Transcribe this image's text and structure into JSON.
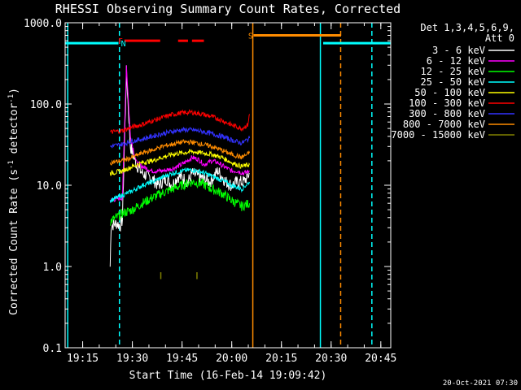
{
  "chart_data": {
    "type": "line",
    "title": "RHESSI Observing Summary Count Rates, Corrected",
    "xlabel": "Start Time (16-Feb-14 19:09:42)",
    "ylabel_main": "Corrected Count Rate (s",
    "ylabel_sup": "-1",
    "ylabel_tail": " detector",
    "ylabel_close": ")",
    "y_log": true,
    "ylim": [
      0.1,
      1000
    ],
    "xlim": [
      19.1617,
      20.8
    ],
    "x_ticks": [
      "19:15",
      "19:30",
      "19:45",
      "20:00",
      "20:15",
      "20:30",
      "20:45"
    ],
    "y_ticks": [
      "0.1",
      "1.0",
      "10.0",
      "100.0",
      "1000.0"
    ],
    "detector_header": [
      "Det 1,3,4,5,6,9,",
      "Att 0"
    ],
    "footer_timestamp": "20-Oct-2021 07:30",
    "series": [
      {
        "name": "3 - 6 keV",
        "color": "#ffffff",
        "points": [
          [
            19.388,
            1.0
          ],
          [
            19.393,
            3.2
          ],
          [
            19.42,
            3.4
          ],
          [
            19.44,
            3.2
          ],
          [
            19.45,
            3.8
          ],
          [
            19.47,
            250
          ],
          [
            19.49,
            30
          ],
          [
            19.52,
            18
          ],
          [
            19.55,
            14
          ],
          [
            19.6,
            12
          ],
          [
            19.63,
            10
          ],
          [
            19.67,
            12
          ],
          [
            19.7,
            10
          ],
          [
            19.73,
            13
          ],
          [
            19.76,
            12
          ],
          [
            19.78,
            11
          ],
          [
            19.8,
            14
          ],
          [
            19.83,
            13
          ],
          [
            19.86,
            12
          ],
          [
            19.89,
            11
          ],
          [
            19.93,
            15
          ],
          [
            19.95,
            13
          ],
          [
            19.97,
            11
          ],
          [
            20.0,
            10
          ],
          [
            20.03,
            11
          ],
          [
            20.06,
            11
          ],
          [
            20.09,
            14
          ]
        ]
      },
      {
        "name": "6 - 12 keV",
        "color": "#ff00ff",
        "points": [
          [
            19.388,
            6.5
          ],
          [
            19.45,
            7
          ],
          [
            19.47,
            300
          ],
          [
            19.49,
            40
          ],
          [
            19.52,
            19
          ],
          [
            19.55,
            17
          ],
          [
            19.6,
            15
          ],
          [
            19.65,
            15
          ],
          [
            19.7,
            16
          ],
          [
            19.75,
            18
          ],
          [
            19.8,
            22
          ],
          [
            19.83,
            21
          ],
          [
            19.86,
            18
          ],
          [
            19.9,
            20
          ],
          [
            19.93,
            19
          ],
          [
            19.96,
            17
          ],
          [
            20.0,
            15
          ],
          [
            20.03,
            15
          ],
          [
            20.06,
            14
          ],
          [
            20.09,
            15
          ]
        ]
      },
      {
        "name": "12 - 25 keV",
        "color": "#00ff00",
        "points": [
          [
            19.388,
            3.6
          ],
          [
            19.42,
            4
          ],
          [
            19.45,
            4.5
          ],
          [
            19.5,
            5
          ],
          [
            19.55,
            6
          ],
          [
            19.6,
            7
          ],
          [
            19.65,
            8
          ],
          [
            19.7,
            9
          ],
          [
            19.75,
            10
          ],
          [
            19.8,
            11
          ],
          [
            19.85,
            10.5
          ],
          [
            19.9,
            9
          ],
          [
            19.95,
            8
          ],
          [
            20.0,
            6.5
          ],
          [
            20.05,
            5.5
          ],
          [
            20.09,
            6
          ]
        ]
      },
      {
        "name": "25 - 50 keV",
        "color": "#00ffff",
        "points": [
          [
            19.388,
            6.5
          ],
          [
            19.45,
            7.5
          ],
          [
            19.5,
            8.5
          ],
          [
            19.55,
            10
          ],
          [
            19.6,
            11
          ],
          [
            19.65,
            12.5
          ],
          [
            19.7,
            14
          ],
          [
            19.75,
            15
          ],
          [
            19.8,
            15.5
          ],
          [
            19.85,
            14.5
          ],
          [
            19.9,
            13
          ],
          [
            19.95,
            11.5
          ],
          [
            20.0,
            10
          ],
          [
            20.05,
            9
          ],
          [
            20.09,
            11
          ]
        ]
      },
      {
        "name": "50 - 100 keV",
        "color": "#ffff00",
        "points": [
          [
            19.388,
            14
          ],
          [
            19.45,
            15
          ],
          [
            19.5,
            17
          ],
          [
            19.55,
            19
          ],
          [
            19.6,
            20
          ],
          [
            19.65,
            22
          ],
          [
            19.7,
            24
          ],
          [
            19.75,
            25
          ],
          [
            19.8,
            26
          ],
          [
            19.85,
            25
          ],
          [
            19.9,
            24
          ],
          [
            19.95,
            22
          ],
          [
            20.0,
            19
          ],
          [
            20.05,
            17
          ],
          [
            20.09,
            18
          ]
        ]
      },
      {
        "name": "100 - 300 keV",
        "color": "#ff0000",
        "points": [
          [
            19.388,
            45
          ],
          [
            19.45,
            47
          ],
          [
            19.5,
            52
          ],
          [
            19.55,
            56
          ],
          [
            19.6,
            62
          ],
          [
            19.65,
            68
          ],
          [
            19.7,
            74
          ],
          [
            19.75,
            78
          ],
          [
            19.8,
            79
          ],
          [
            19.85,
            75
          ],
          [
            19.9,
            70
          ],
          [
            19.95,
            63
          ],
          [
            20.0,
            55
          ],
          [
            20.05,
            50
          ],
          [
            20.08,
            55
          ],
          [
            20.09,
            75
          ]
        ]
      },
      {
        "name": "300 - 800 keV",
        "color": "#3232ff",
        "points": [
          [
            19.388,
            30
          ],
          [
            19.45,
            32
          ],
          [
            19.5,
            35
          ],
          [
            19.55,
            37
          ],
          [
            19.6,
            40
          ],
          [
            19.65,
            43
          ],
          [
            19.7,
            46
          ],
          [
            19.75,
            48
          ],
          [
            19.8,
            48
          ],
          [
            19.85,
            46
          ],
          [
            19.9,
            43
          ],
          [
            19.95,
            40
          ],
          [
            20.0,
            36
          ],
          [
            20.05,
            33
          ],
          [
            20.09,
            38
          ]
        ]
      },
      {
        "name": "800 - 7000 keV",
        "color": "#ff8c00",
        "points": [
          [
            19.388,
            19
          ],
          [
            19.45,
            20
          ],
          [
            19.5,
            22
          ],
          [
            19.55,
            25
          ],
          [
            19.6,
            27
          ],
          [
            19.65,
            30
          ],
          [
            19.7,
            32
          ],
          [
            19.75,
            34
          ],
          [
            19.8,
            34
          ],
          [
            19.85,
            32
          ],
          [
            19.9,
            30
          ],
          [
            19.95,
            27
          ],
          [
            20.0,
            24
          ],
          [
            20.05,
            22
          ],
          [
            20.09,
            25
          ]
        ]
      },
      {
        "name": "7000 - 15000 keV",
        "color": "#808000",
        "points": [
          [
            19.643,
            0.85
          ],
          [
            19.643,
            0.7
          ],
          [
            19.825,
            0.85
          ],
          [
            19.825,
            0.7
          ]
        ]
      }
    ],
    "flags": [
      {
        "label": "F",
        "color": "#ff0000",
        "y": 600,
        "segments": [
          [
            19.46,
            19.64
          ],
          [
            19.73,
            19.78
          ],
          [
            19.8,
            19.86
          ]
        ]
      },
      {
        "label": "N",
        "color": "#00ffff",
        "y": 600,
        "segments": []
      },
      {
        "label": "S",
        "color": "#ff8c00",
        "y": 700,
        "segments": [
          [
            20.11,
            20.55
          ]
        ]
      }
    ],
    "saa_bar": {
      "color": "#00ffff",
      "y": 560,
      "segments": [
        [
          19.162,
          19.43
        ],
        [
          20.46,
          20.8
        ]
      ]
    },
    "vertical_lines": [
      {
        "x": 19.175,
        "color": "#00ffff",
        "style": "solid"
      },
      {
        "x": 19.435,
        "color": "#00ffff",
        "style": "dashed"
      },
      {
        "x": 20.106,
        "color": "#ff8c00",
        "style": "solid"
      },
      {
        "x": 20.446,
        "color": "#00ffff",
        "style": "solid"
      },
      {
        "x": 20.548,
        "color": "#ff8c00",
        "style": "dashed"
      },
      {
        "x": 20.705,
        "color": "#00ffff",
        "style": "dashed"
      }
    ]
  }
}
